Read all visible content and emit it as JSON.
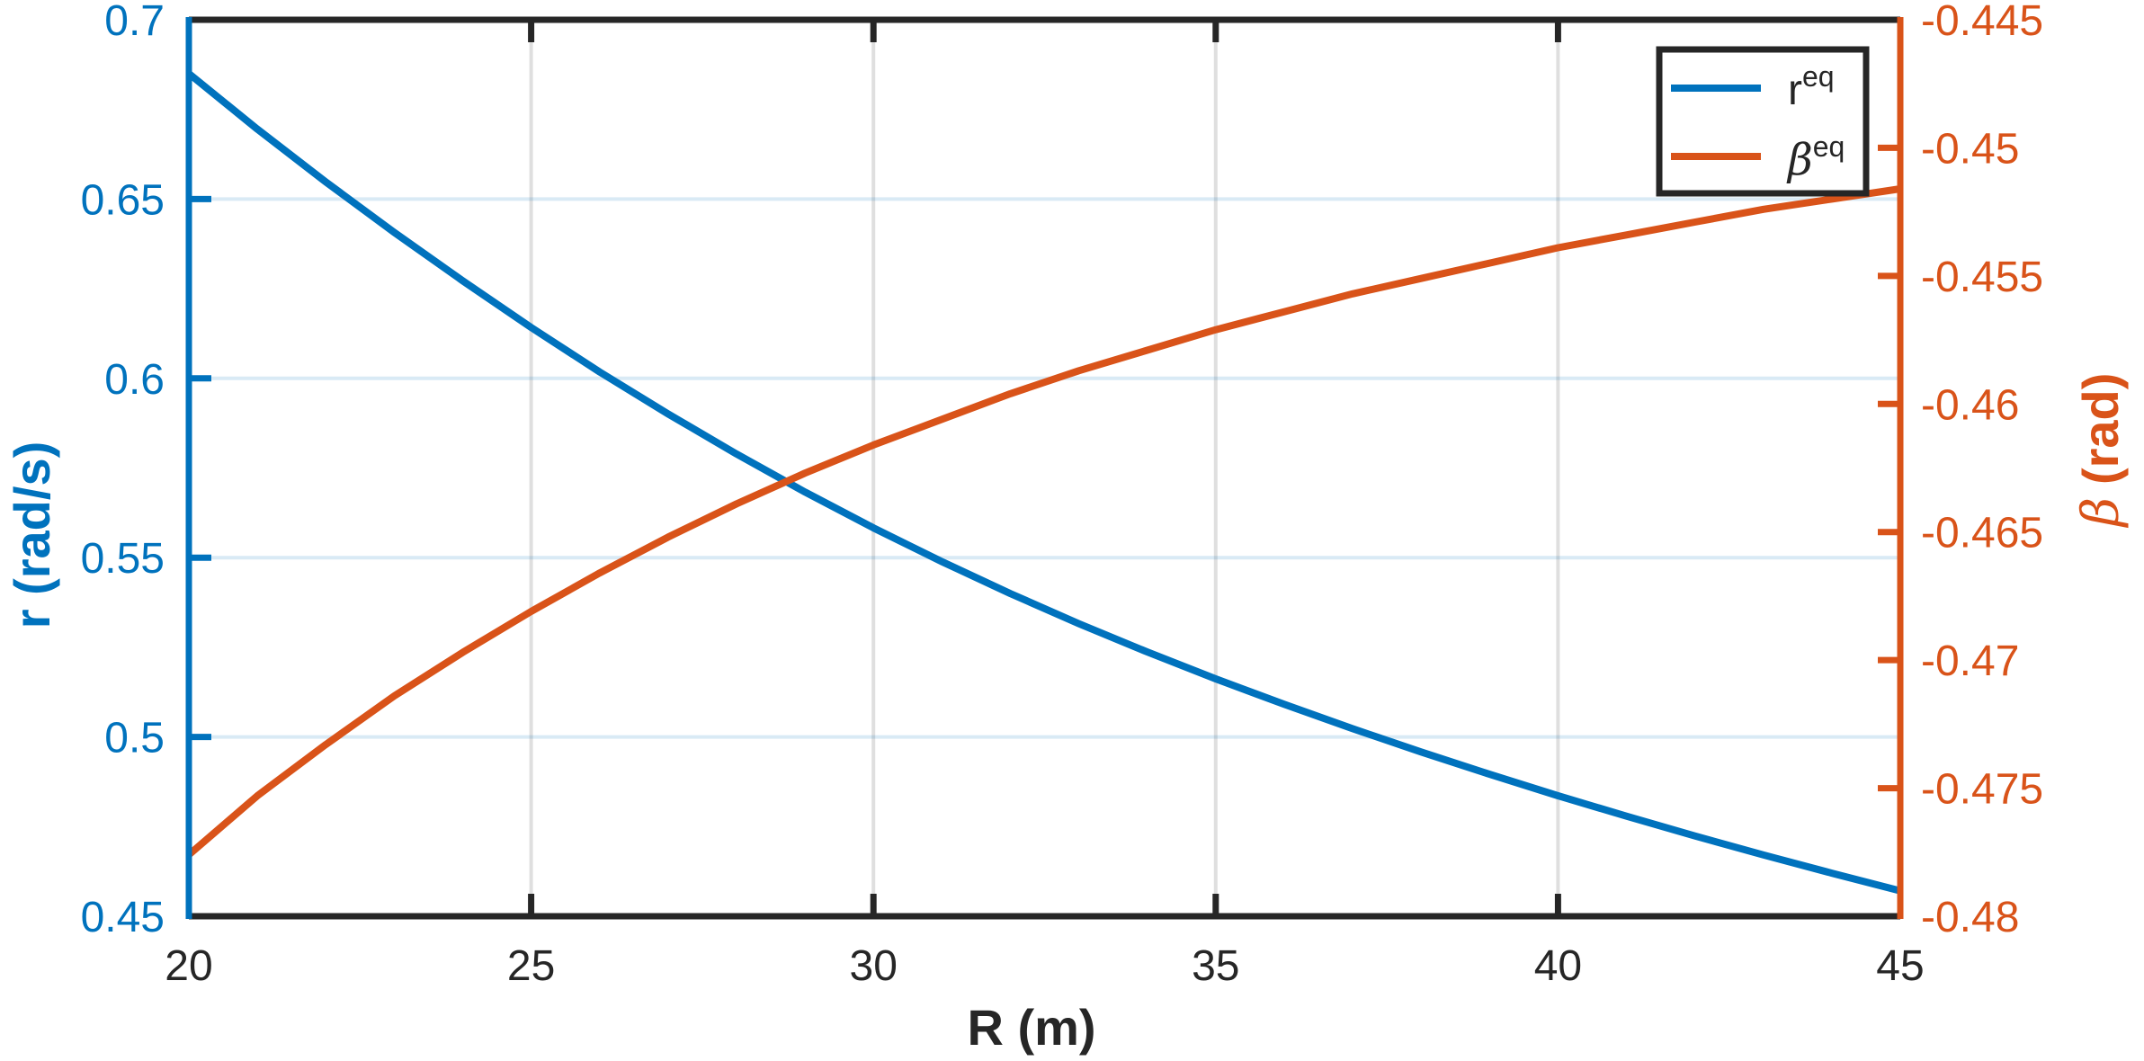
{
  "chart_data": {
    "type": "line",
    "xlabel": "R (m)",
    "ylabel_left": "r (rad/s)",
    "ylabel_right_symbol": "β",
    "ylabel_right_unit": "(rad)",
    "xlim": [
      20,
      45
    ],
    "ylim_left": [
      0.45,
      0.7
    ],
    "ylim_right": [
      -0.48,
      -0.445
    ],
    "x_ticks": [
      20,
      25,
      30,
      35,
      40,
      45
    ],
    "x_tick_labels": [
      "20",
      "25",
      "30",
      "35",
      "40",
      "45"
    ],
    "y_left_ticks": [
      0.45,
      0.5,
      0.55,
      0.6,
      0.65,
      0.7
    ],
    "y_left_tick_labels": [
      "0.45",
      "0.5",
      "0.55",
      "0.6",
      "0.65",
      "0.7"
    ],
    "y_right_ticks": [
      -0.48,
      -0.475,
      -0.47,
      -0.465,
      -0.46,
      -0.455,
      -0.45,
      -0.445
    ],
    "y_right_tick_labels": [
      "-0.48",
      "-0.475",
      "-0.47",
      "-0.465",
      "-0.46",
      "-0.455",
      "-0.45",
      "-0.445"
    ],
    "grid": true,
    "legend_position": "top-right",
    "x": [
      20,
      21,
      22,
      23,
      24,
      25,
      26,
      27,
      28,
      29,
      30,
      31,
      32,
      33,
      34,
      35,
      36,
      37,
      38,
      39,
      40,
      41,
      42,
      43,
      44,
      45
    ],
    "series": [
      {
        "name": "r",
        "name_sup": "eq",
        "axis": "left",
        "color": "#0072BD",
        "values": [
          0.685,
          0.6695,
          0.6548,
          0.6407,
          0.6272,
          0.6142,
          0.6018,
          0.5901,
          0.5789,
          0.5683,
          0.5583,
          0.5489,
          0.54,
          0.5316,
          0.5237,
          0.5162,
          0.5091,
          0.5023,
          0.4958,
          0.4896,
          0.4836,
          0.4779,
          0.4724,
          0.4671,
          0.462,
          0.4571
        ]
      },
      {
        "name": "β",
        "name_sup": "eq",
        "axis": "right",
        "color": "#D95319",
        "values": [
          -0.4776,
          -0.4753,
          -0.4733,
          -0.4714,
          -0.4697,
          -0.4681,
          -0.4666,
          -0.4652,
          -0.4639,
          -0.4627,
          -0.4616,
          -0.4606,
          -0.4596,
          -0.4587,
          -0.4579,
          -0.4571,
          -0.4564,
          -0.4557,
          -0.4551,
          -0.4545,
          -0.4539,
          -0.4534,
          -0.4529,
          -0.4524,
          -0.452,
          -0.4516
        ]
      }
    ]
  }
}
